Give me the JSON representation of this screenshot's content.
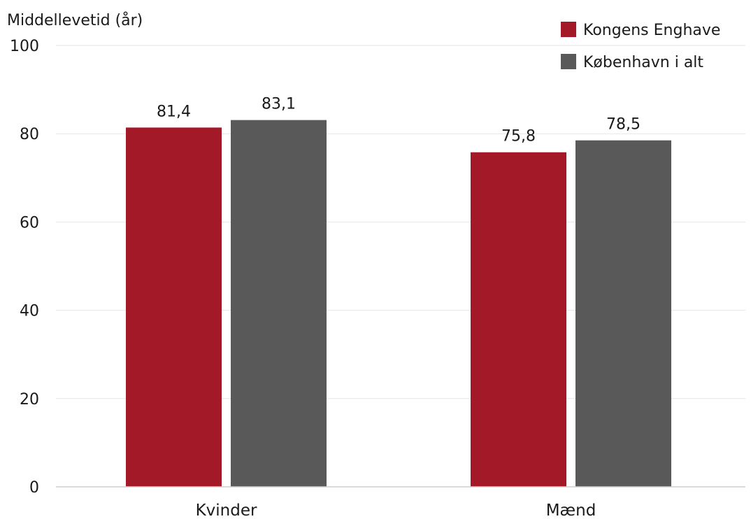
{
  "chart_data": {
    "type": "bar",
    "ylabel": "Middellevetid (år)",
    "categories": [
      "Kvinder",
      "Mænd"
    ],
    "series": [
      {
        "name": "Kongens Enghave",
        "values": [
          81.4,
          75.8
        ],
        "labels": [
          "81,4",
          "75,8"
        ],
        "color": "#a31927"
      },
      {
        "name": "København i alt",
        "values": [
          83.1,
          78.5
        ],
        "labels": [
          "83,1",
          "78,5"
        ],
        "color": "#595959"
      }
    ],
    "ylim": [
      0,
      100
    ],
    "yticks": [
      0,
      20,
      40,
      60,
      80,
      100
    ],
    "ytick_labels": [
      "0",
      "20",
      "40",
      "60",
      "80",
      "100"
    ],
    "grid": true,
    "legend": "top-right",
    "gridline_color": "#e6e6e6",
    "axis_color": "#cfcfcf"
  }
}
